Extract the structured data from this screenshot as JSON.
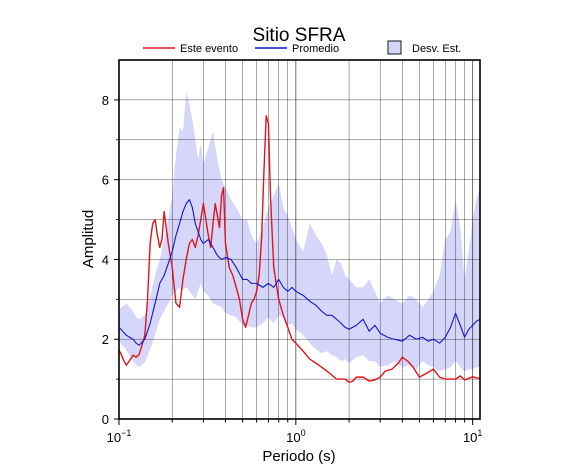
{
  "chart_data": {
    "type": "line",
    "title": "Sitio SFRA",
    "xlabel": "Periodo (s)",
    "ylabel": "Amplitud",
    "xscale": "log",
    "xlim": [
      0.1,
      11
    ],
    "ylim": [
      0,
      9
    ],
    "grid": true,
    "legend_position": "top",
    "x_ticks": [
      {
        "value": 0.1,
        "base": "10",
        "exp": "−1"
      },
      {
        "value": 1,
        "base": "10",
        "exp": "0"
      },
      {
        "value": 10,
        "base": "10",
        "exp": "1"
      }
    ],
    "y_ticks": [
      0,
      2,
      4,
      6,
      8
    ],
    "legend": {
      "este": "Este evento",
      "promedio": "Promedio",
      "desv": "Desv. Est."
    },
    "colors": {
      "este": "#e0141b",
      "promedio": "#1414d2",
      "desv_fill": "#d6d6fa",
      "desv_edge": "#000000"
    },
    "series": [
      {
        "name": "Este evento",
        "color": "#e0141b",
        "x": [
          0.1,
          0.103,
          0.106,
          0.11,
          0.113,
          0.117,
          0.12,
          0.125,
          0.13,
          0.135,
          0.14,
          0.145,
          0.15,
          0.155,
          0.16,
          0.165,
          0.17,
          0.175,
          0.18,
          0.19,
          0.2,
          0.21,
          0.22,
          0.23,
          0.24,
          0.25,
          0.26,
          0.27,
          0.28,
          0.29,
          0.3,
          0.31,
          0.32,
          0.33,
          0.34,
          0.35,
          0.36,
          0.37,
          0.38,
          0.39,
          0.4,
          0.42,
          0.44,
          0.46,
          0.48,
          0.5,
          0.52,
          0.54,
          0.56,
          0.58,
          0.6,
          0.62,
          0.64,
          0.66,
          0.68,
          0.7,
          0.72,
          0.75,
          0.8,
          0.85,
          0.9,
          0.95,
          1.0,
          1.1,
          1.2,
          1.3,
          1.4,
          1.5,
          1.6,
          1.7,
          1.8,
          1.9,
          2.0,
          2.1,
          2.2,
          2.4,
          2.6,
          2.8,
          3.0,
          3.2,
          3.5,
          3.8,
          4.0,
          4.3,
          4.6,
          5.0,
          5.5,
          6.0,
          6.5,
          7.0,
          7.5,
          8.0,
          8.5,
          9.0,
          9.5,
          10.0,
          10.5,
          11.0
        ],
        "values": [
          1.72,
          1.62,
          1.48,
          1.35,
          1.42,
          1.52,
          1.6,
          1.55,
          1.62,
          1.85,
          2.1,
          3.0,
          4.4,
          4.9,
          5.0,
          4.6,
          4.3,
          4.5,
          5.2,
          4.4,
          3.8,
          2.9,
          2.8,
          3.5,
          4.0,
          4.4,
          4.5,
          4.3,
          4.6,
          5.0,
          5.4,
          5.0,
          4.6,
          4.3,
          4.9,
          5.4,
          5.1,
          4.8,
          5.6,
          5.8,
          4.4,
          3.8,
          3.6,
          3.3,
          3.0,
          2.5,
          2.3,
          2.6,
          2.9,
          3.0,
          3.2,
          3.6,
          4.5,
          6.2,
          7.6,
          7.4,
          5.5,
          3.8,
          3.0,
          2.6,
          2.3,
          2.0,
          1.9,
          1.7,
          1.5,
          1.4,
          1.3,
          1.2,
          1.1,
          1.0,
          1.0,
          1.0,
          0.92,
          0.95,
          1.05,
          1.05,
          0.95,
          0.98,
          1.05,
          1.2,
          1.25,
          1.4,
          1.55,
          1.45,
          1.3,
          1.05,
          1.15,
          1.25,
          1.05,
          1.0,
          1.0,
          1.0,
          1.08,
          0.98,
          1.02,
          1.06,
          1.03,
          1.02
        ]
      },
      {
        "name": "Promedio",
        "color": "#1414d2",
        "x": [
          0.1,
          0.11,
          0.12,
          0.125,
          0.13,
          0.14,
          0.15,
          0.16,
          0.17,
          0.18,
          0.19,
          0.2,
          0.21,
          0.22,
          0.23,
          0.24,
          0.25,
          0.26,
          0.27,
          0.28,
          0.29,
          0.3,
          0.32,
          0.34,
          0.36,
          0.38,
          0.4,
          0.43,
          0.46,
          0.5,
          0.53,
          0.56,
          0.6,
          0.65,
          0.7,
          0.75,
          0.8,
          0.85,
          0.9,
          0.95,
          1.0,
          1.1,
          1.2,
          1.3,
          1.4,
          1.5,
          1.6,
          1.7,
          1.8,
          1.9,
          2.0,
          2.2,
          2.4,
          2.6,
          2.8,
          3.0,
          3.3,
          3.6,
          4.0,
          4.4,
          4.8,
          5.2,
          5.6,
          6.0,
          6.5,
          7.0,
          7.5,
          8.0,
          8.5,
          9.0,
          9.5,
          10.0,
          10.5,
          11.0
        ],
        "values": [
          2.3,
          2.1,
          2.0,
          1.9,
          1.85,
          2.0,
          2.4,
          2.9,
          3.4,
          3.6,
          3.9,
          4.2,
          4.6,
          4.9,
          5.2,
          5.4,
          5.5,
          5.3,
          4.9,
          4.7,
          4.5,
          4.4,
          4.5,
          4.3,
          4.1,
          4.0,
          4.05,
          4.0,
          3.8,
          3.5,
          3.5,
          3.4,
          3.4,
          3.3,
          3.4,
          3.3,
          3.5,
          3.3,
          3.2,
          3.3,
          3.2,
          3.1,
          2.95,
          2.85,
          2.7,
          2.6,
          2.6,
          2.5,
          2.4,
          2.3,
          2.25,
          2.35,
          2.5,
          2.2,
          2.35,
          2.15,
          2.05,
          2.0,
          1.95,
          2.1,
          2.0,
          2.05,
          1.95,
          2.0,
          1.9,
          2.05,
          2.3,
          2.65,
          2.35,
          2.05,
          2.25,
          2.35,
          2.45,
          2.5
        ]
      }
    ],
    "band": {
      "name": "Desv. Est.",
      "x": [
        0.1,
        0.11,
        0.12,
        0.125,
        0.13,
        0.14,
        0.15,
        0.16,
        0.17,
        0.18,
        0.19,
        0.2,
        0.21,
        0.22,
        0.23,
        0.24,
        0.25,
        0.26,
        0.27,
        0.28,
        0.29,
        0.3,
        0.32,
        0.34,
        0.36,
        0.38,
        0.4,
        0.43,
        0.46,
        0.5,
        0.53,
        0.56,
        0.6,
        0.65,
        0.7,
        0.75,
        0.8,
        0.85,
        0.9,
        0.95,
        1.0,
        1.1,
        1.2,
        1.3,
        1.4,
        1.5,
        1.6,
        1.7,
        1.8,
        1.9,
        2.0,
        2.2,
        2.4,
        2.6,
        2.8,
        3.0,
        3.3,
        3.6,
        4.0,
        4.4,
        4.8,
        5.2,
        5.6,
        6.0,
        6.5,
        7.0,
        7.5,
        8.0,
        8.5,
        9.0,
        9.5,
        10.0,
        10.5,
        11.0
      ],
      "upper": [
        2.75,
        2.9,
        2.7,
        2.55,
        2.5,
        2.6,
        3.1,
        3.6,
        4.0,
        4.5,
        5.0,
        5.6,
        6.6,
        7.3,
        7.2,
        8.2,
        7.9,
        7.5,
        7.0,
        6.5,
        6.9,
        6.4,
        6.8,
        7.2,
        6.5,
        6.0,
        5.8,
        5.5,
        5.3,
        5.0,
        5.0,
        4.6,
        4.4,
        4.8,
        5.3,
        5.6,
        5.9,
        5.3,
        5.1,
        4.8,
        4.5,
        4.2,
        4.9,
        4.6,
        4.4,
        4.1,
        3.6,
        4.0,
        3.9,
        3.6,
        3.5,
        3.3,
        3.3,
        3.5,
        3.2,
        2.9,
        3.1,
        3.0,
        2.9,
        3.1,
        3.0,
        2.8,
        3.0,
        3.2,
        3.6,
        4.5,
        4.7,
        5.5,
        4.8,
        3.5,
        4.2,
        5.0,
        5.5,
        5.8
      ],
      "lower": [
        1.95,
        1.72,
        1.45,
        1.35,
        1.3,
        1.42,
        1.75,
        2.1,
        2.5,
        2.7,
        2.9,
        3.1,
        3.2,
        3.3,
        3.25,
        3.3,
        3.2,
        3.1,
        3.0,
        3.2,
        3.4,
        3.2,
        3.1,
        2.9,
        2.85,
        2.8,
        2.65,
        2.6,
        2.55,
        2.35,
        2.35,
        2.3,
        2.3,
        2.4,
        2.55,
        2.4,
        2.6,
        2.55,
        2.35,
        2.4,
        2.25,
        2.1,
        1.9,
        1.75,
        1.65,
        1.7,
        1.6,
        1.55,
        1.45,
        1.5,
        1.4,
        1.55,
        1.6,
        1.45,
        1.45,
        1.3,
        1.35,
        1.45,
        1.3,
        1.35,
        1.25,
        1.45,
        1.35,
        1.3,
        1.2,
        1.25,
        1.3,
        1.45,
        1.3,
        1.2,
        1.25,
        1.25,
        1.3,
        1.3
      ]
    }
  }
}
